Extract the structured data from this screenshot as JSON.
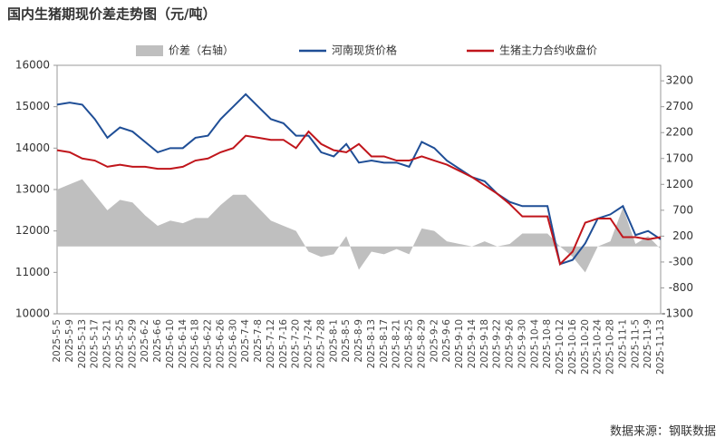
{
  "chart_data": {
    "type": "line",
    "title": "国内生猪期现价差走势图（元/吨）",
    "source": "数据来源：钢联数据",
    "categories": [
      "2025-5-5",
      "2025-5-9",
      "2025-5-13",
      "2025-5-17",
      "2025-5-21",
      "2025-5-25",
      "2025-5-29",
      "2025-6-2",
      "2025-6-6",
      "2025-6-10",
      "2025-6-14",
      "2025-6-18",
      "2025-6-22",
      "2025-6-26",
      "2025-6-30",
      "2025-7-4",
      "2025-7-8",
      "2025-7-12",
      "2025-7-16",
      "2025-7-20",
      "2025-7-24",
      "2025-7-28",
      "2025-8-1",
      "2025-8-5",
      "2025-8-9",
      "2025-8-13",
      "2025-8-17",
      "2025-8-21",
      "2025-8-25",
      "2025-8-29",
      "2025-9-2",
      "2025-9-6",
      "2025-9-10",
      "2025-9-14",
      "2025-9-18",
      "2025-9-22",
      "2025-9-26",
      "2025-9-30",
      "2025-10-4",
      "2025-10-8",
      "2025-10-12",
      "2025-10-16",
      "2025-10-20",
      "2025-10-24",
      "2025-10-28",
      "2025-11-1",
      "2025-11-5",
      "2025-11-9",
      "2025-11-13"
    ],
    "series": [
      {
        "name": "价差（右轴）",
        "type": "area",
        "axis": "y2",
        "color": "#bfbfbf",
        "values": [
          1100,
          1200,
          1300,
          1000,
          700,
          900,
          850,
          600,
          400,
          500,
          450,
          550,
          550,
          800,
          1000,
          1000,
          750,
          500,
          400,
          300,
          -100,
          -200,
          -150,
          200,
          -450,
          -100,
          -150,
          -50,
          -150,
          350,
          300,
          100,
          50,
          0,
          100,
          0,
          50,
          250,
          250,
          250,
          0,
          -200,
          -500,
          0,
          100,
          750,
          50,
          200,
          -50
        ]
      },
      {
        "name": "河南现货价格",
        "type": "line",
        "color": "#1f4e96",
        "values": [
          15050,
          15100,
          15050,
          14700,
          14250,
          14500,
          14400,
          14150,
          13900,
          14000,
          14000,
          14250,
          14300,
          14700,
          15000,
          15300,
          15000,
          14700,
          14600,
          14300,
          14300,
          13900,
          13800,
          14100,
          13650,
          13700,
          13650,
          13650,
          13550,
          14150,
          14000,
          13700,
          13500,
          13300,
          13200,
          12900,
          12700,
          12600,
          12600,
          12600,
          11200,
          11300,
          11700,
          12300,
          12400,
          12600,
          11900,
          12000,
          11800
        ]
      },
      {
        "name": "生猪主力合约收盘价",
        "type": "line",
        "color": "#c0151b",
        "values": [
          13950,
          13900,
          13750,
          13700,
          13550,
          13600,
          13550,
          13550,
          13500,
          13500,
          13550,
          13700,
          13750,
          13900,
          14000,
          14300,
          14250,
          14200,
          14200,
          14000,
          14400,
          14100,
          13950,
          13900,
          14100,
          13800,
          13800,
          13700,
          13700,
          13800,
          13700,
          13600,
          13450,
          13300,
          13100,
          12900,
          12650,
          12350,
          12350,
          12350,
          11200,
          11500,
          12200,
          12300,
          12300,
          11850,
          11850,
          11800,
          11850
        ]
      }
    ],
    "ylim": [
      10000,
      16000
    ],
    "yticks": [
      10000,
      11000,
      12000,
      13000,
      14000,
      15000,
      16000
    ],
    "y2lim": [
      -1300,
      3500
    ],
    "y2ticks": [
      -1300,
      -800,
      -300,
      200,
      700,
      1200,
      1700,
      2200,
      2700,
      3200
    ]
  }
}
